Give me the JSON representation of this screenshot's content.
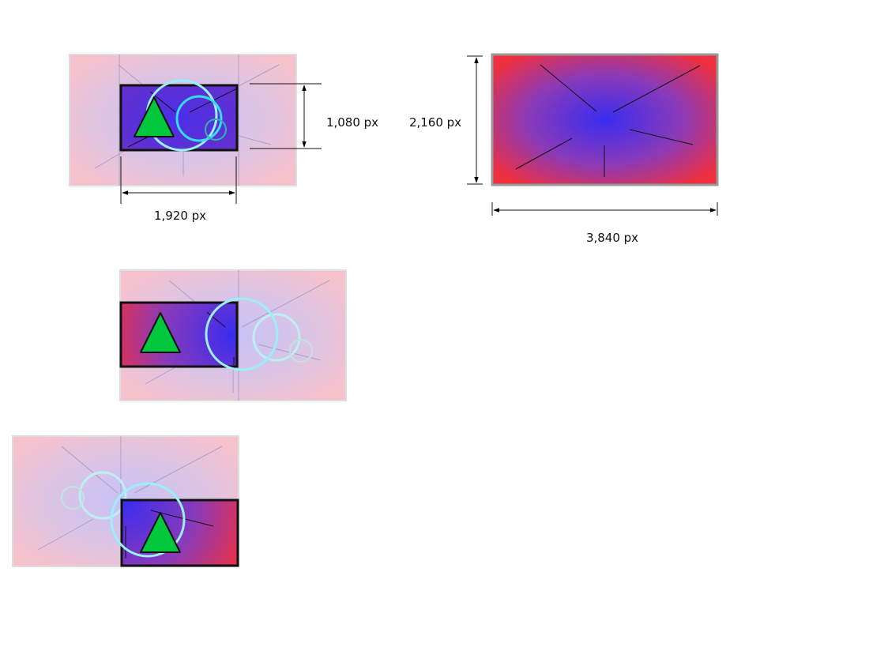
{
  "labels": {
    "hd_width": "1,920 px",
    "hd_height": "1,080 px",
    "uhd_height": "2,160 px",
    "uhd_width": "3,840 px"
  },
  "colors": {
    "gradient_center": "#3a2cf0",
    "gradient_edge": "#ef3040",
    "faded_center": "#c6c2f6",
    "faded_edge": "#f6c2cc",
    "circle_stroke": "#34dcec",
    "triangle_fill": "#00c83c",
    "frame_stroke": "#111111",
    "canvas_border": "#dddddd"
  }
}
